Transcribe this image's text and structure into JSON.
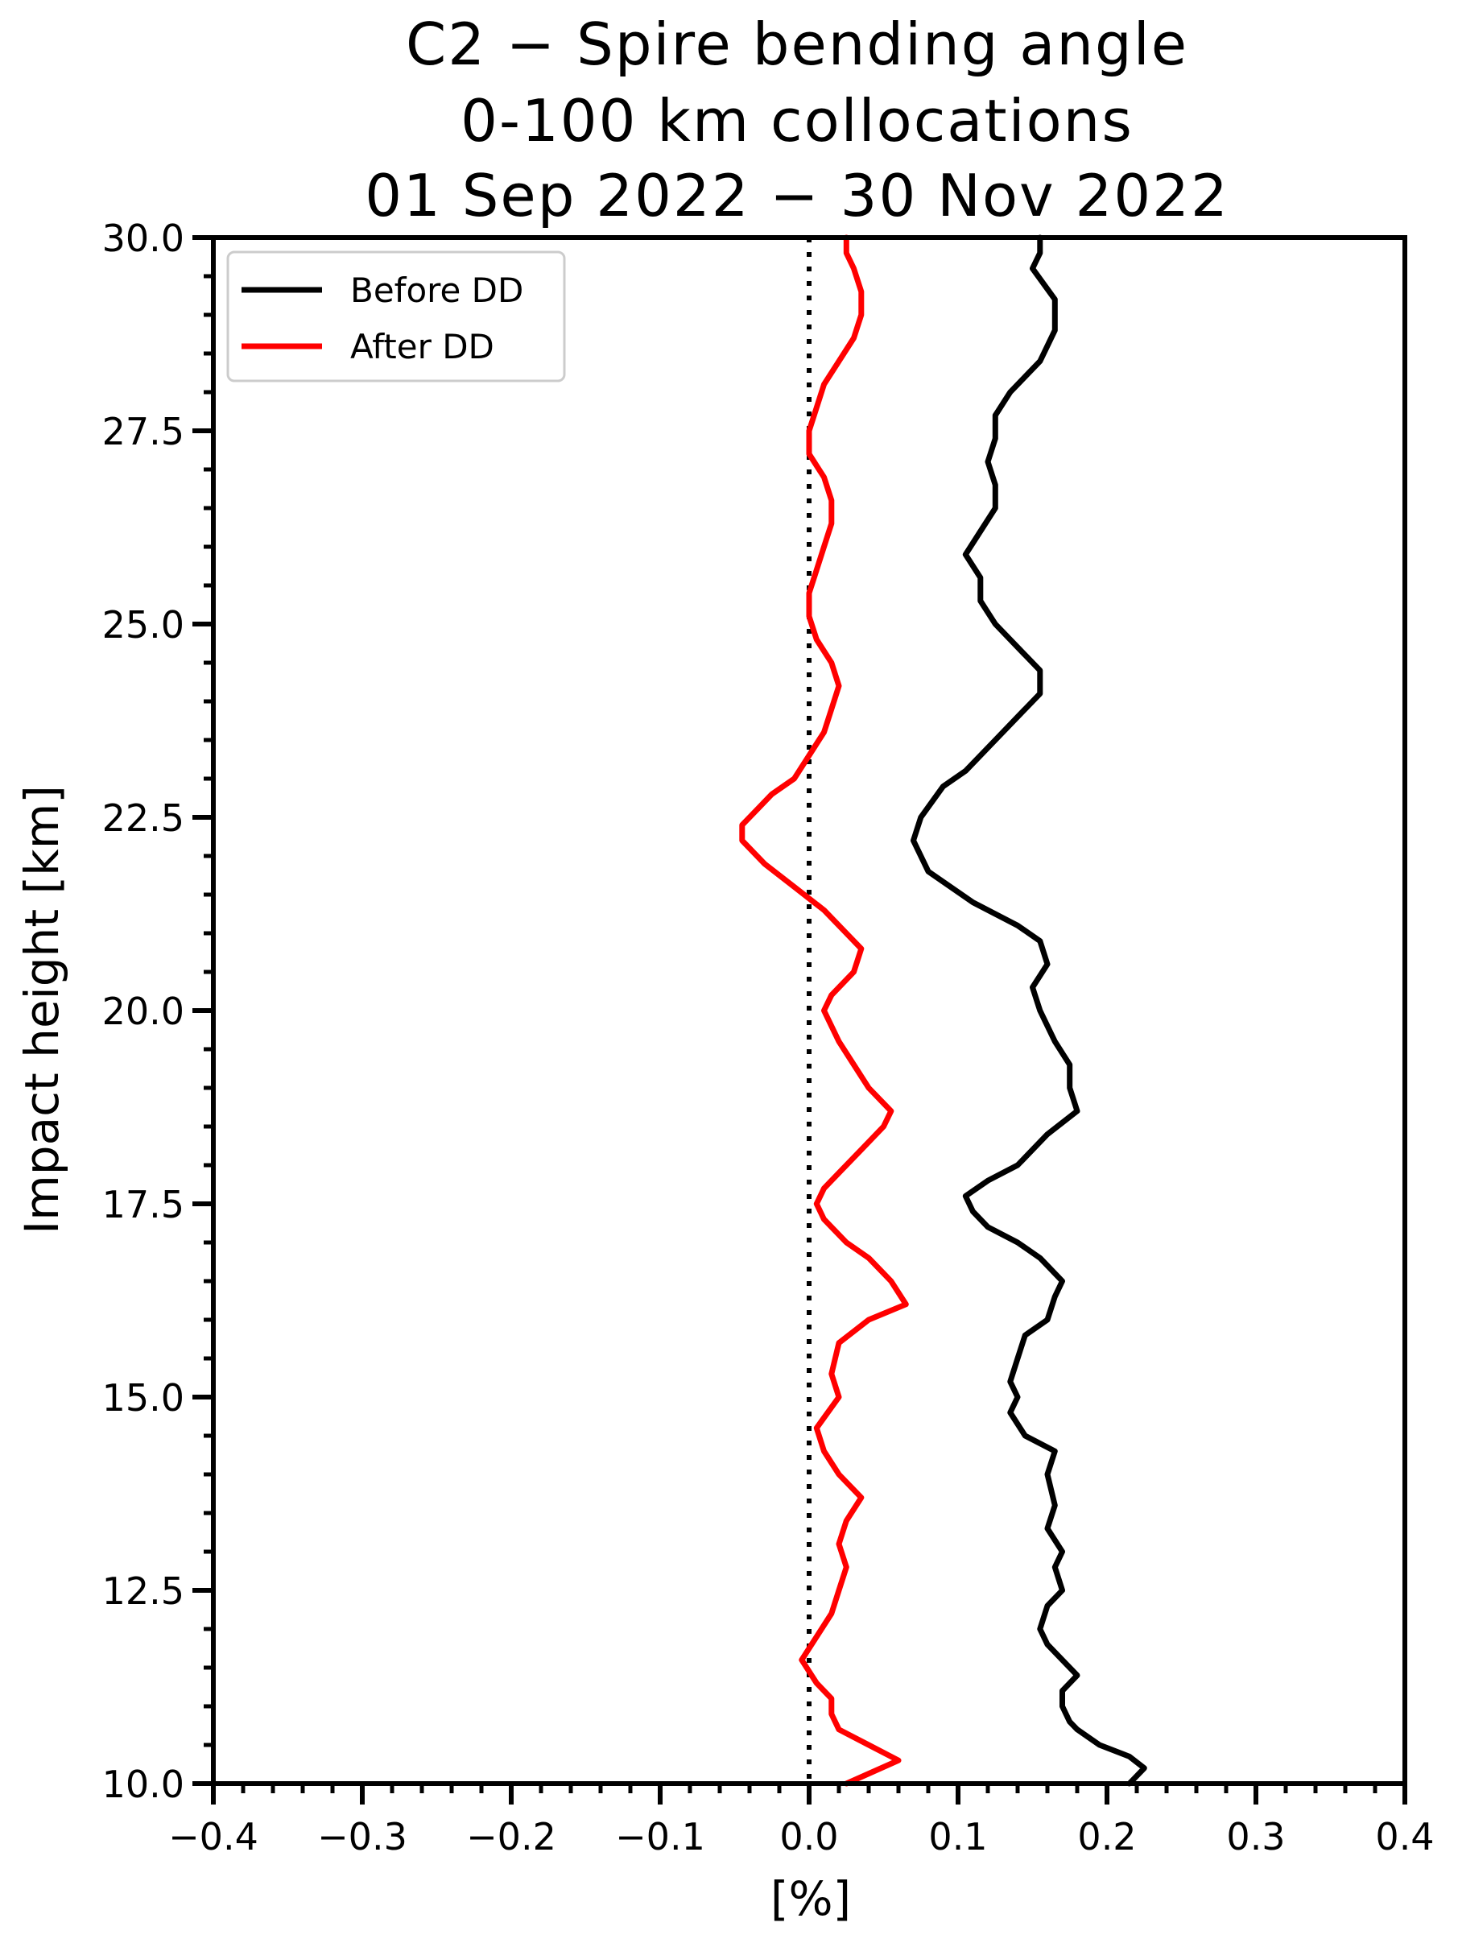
{
  "chart_data": {
    "type": "line",
    "title_lines": [
      "C2 − Spire bending angle",
      "0-100 km collocations",
      "01 Sep 2022 − 30 Nov 2022"
    ],
    "xlabel": "[%]",
    "ylabel": "Impact height [km]",
    "xlim": [
      -0.4,
      0.4
    ],
    "ylim": [
      10.0,
      30.0
    ],
    "xticks": [
      -0.4,
      -0.3,
      -0.2,
      -0.1,
      0.0,
      0.1,
      0.2,
      0.3,
      0.4
    ],
    "xtick_labels": [
      "−0.4",
      "−0.3",
      "−0.2",
      "−0.1",
      "0.0",
      "0.1",
      "0.2",
      "0.3",
      "0.4"
    ],
    "yticks": [
      10.0,
      12.5,
      15.0,
      17.5,
      20.0,
      22.5,
      25.0,
      27.5,
      30.0
    ],
    "ytick_labels": [
      "10.0",
      "12.5",
      "15.0",
      "17.5",
      "20.0",
      "22.5",
      "25.0",
      "27.5",
      "30.0"
    ],
    "grid": false,
    "legend_position": "top-left",
    "reference_line": {
      "x": 0.0,
      "style": "dotted",
      "color": "#000000"
    },
    "series": [
      {
        "name": "Before DD",
        "color": "#000000",
        "points": [
          [
            0.215,
            10.0
          ],
          [
            0.225,
            10.2
          ],
          [
            0.215,
            10.35
          ],
          [
            0.195,
            10.5
          ],
          [
            0.18,
            10.7
          ],
          [
            0.175,
            10.8
          ],
          [
            0.17,
            11.0
          ],
          [
            0.17,
            11.2
          ],
          [
            0.18,
            11.4
          ],
          [
            0.17,
            11.6
          ],
          [
            0.16,
            11.8
          ],
          [
            0.155,
            12.0
          ],
          [
            0.16,
            12.3
          ],
          [
            0.17,
            12.5
          ],
          [
            0.165,
            12.8
          ],
          [
            0.17,
            13.0
          ],
          [
            0.16,
            13.3
          ],
          [
            0.165,
            13.6
          ],
          [
            0.16,
            14.0
          ],
          [
            0.165,
            14.3
          ],
          [
            0.145,
            14.5
          ],
          [
            0.135,
            14.8
          ],
          [
            0.14,
            15.0
          ],
          [
            0.135,
            15.2
          ],
          [
            0.14,
            15.5
          ],
          [
            0.145,
            15.8
          ],
          [
            0.16,
            16.0
          ],
          [
            0.165,
            16.3
          ],
          [
            0.17,
            16.5
          ],
          [
            0.155,
            16.8
          ],
          [
            0.14,
            17.0
          ],
          [
            0.12,
            17.2
          ],
          [
            0.11,
            17.4
          ],
          [
            0.105,
            17.6
          ],
          [
            0.12,
            17.8
          ],
          [
            0.14,
            18.0
          ],
          [
            0.16,
            18.4
          ],
          [
            0.18,
            18.7
          ],
          [
            0.175,
            19.0
          ],
          [
            0.175,
            19.3
          ],
          [
            0.165,
            19.6
          ],
          [
            0.155,
            20.0
          ],
          [
            0.15,
            20.3
          ],
          [
            0.16,
            20.6
          ],
          [
            0.155,
            20.9
          ],
          [
            0.14,
            21.1
          ],
          [
            0.11,
            21.4
          ],
          [
            0.08,
            21.8
          ],
          [
            0.07,
            22.2
          ],
          [
            0.075,
            22.5
          ],
          [
            0.09,
            22.9
          ],
          [
            0.105,
            23.1
          ],
          [
            0.125,
            23.5
          ],
          [
            0.14,
            23.8
          ],
          [
            0.155,
            24.1
          ],
          [
            0.155,
            24.4
          ],
          [
            0.14,
            24.7
          ],
          [
            0.125,
            25.0
          ],
          [
            0.115,
            25.3
          ],
          [
            0.115,
            25.6
          ],
          [
            0.105,
            25.9
          ],
          [
            0.115,
            26.2
          ],
          [
            0.125,
            26.5
          ],
          [
            0.125,
            26.8
          ],
          [
            0.12,
            27.1
          ],
          [
            0.125,
            27.4
          ],
          [
            0.125,
            27.7
          ],
          [
            0.135,
            28.0
          ],
          [
            0.155,
            28.4
          ],
          [
            0.165,
            28.8
          ],
          [
            0.165,
            29.2
          ],
          [
            0.15,
            29.6
          ],
          [
            0.155,
            29.8
          ],
          [
            0.155,
            30.0
          ]
        ]
      },
      {
        "name": "After DD",
        "color": "#ff0000",
        "points": [
          [
            0.025,
            10.0
          ],
          [
            0.06,
            10.3
          ],
          [
            0.04,
            10.5
          ],
          [
            0.02,
            10.7
          ],
          [
            0.015,
            10.9
          ],
          [
            0.015,
            11.1
          ],
          [
            0.005,
            11.3
          ],
          [
            -0.005,
            11.6
          ],
          [
            0.005,
            11.9
          ],
          [
            0.015,
            12.2
          ],
          [
            0.02,
            12.5
          ],
          [
            0.025,
            12.8
          ],
          [
            0.02,
            13.1
          ],
          [
            0.025,
            13.4
          ],
          [
            0.035,
            13.7
          ],
          [
            0.02,
            14.0
          ],
          [
            0.01,
            14.3
          ],
          [
            0.005,
            14.6
          ],
          [
            0.02,
            15.0
          ],
          [
            0.015,
            15.3
          ],
          [
            0.02,
            15.7
          ],
          [
            0.04,
            16.0
          ],
          [
            0.065,
            16.2
          ],
          [
            0.055,
            16.5
          ],
          [
            0.04,
            16.8
          ],
          [
            0.025,
            17.0
          ],
          [
            0.01,
            17.3
          ],
          [
            0.005,
            17.5
          ],
          [
            0.01,
            17.7
          ],
          [
            0.02,
            17.9
          ],
          [
            0.035,
            18.2
          ],
          [
            0.05,
            18.5
          ],
          [
            0.055,
            18.7
          ],
          [
            0.04,
            19.0
          ],
          [
            0.03,
            19.3
          ],
          [
            0.02,
            19.6
          ],
          [
            0.01,
            20.0
          ],
          [
            0.015,
            20.2
          ],
          [
            0.03,
            20.5
          ],
          [
            0.035,
            20.8
          ],
          [
            0.025,
            21.0
          ],
          [
            0.01,
            21.3
          ],
          [
            -0.01,
            21.6
          ],
          [
            -0.03,
            21.9
          ],
          [
            -0.045,
            22.2
          ],
          [
            -0.045,
            22.4
          ],
          [
            -0.035,
            22.6
          ],
          [
            -0.025,
            22.8
          ],
          [
            -0.01,
            23.0
          ],
          [
            0.0,
            23.3
          ],
          [
            0.01,
            23.6
          ],
          [
            0.015,
            23.9
          ],
          [
            0.02,
            24.2
          ],
          [
            0.015,
            24.5
          ],
          [
            0.005,
            24.8
          ],
          [
            0.0,
            25.1
          ],
          [
            0.0,
            25.4
          ],
          [
            0.005,
            25.7
          ],
          [
            0.01,
            26.0
          ],
          [
            0.015,
            26.3
          ],
          [
            0.015,
            26.6
          ],
          [
            0.01,
            26.9
          ],
          [
            0.0,
            27.2
          ],
          [
            0.0,
            27.5
          ],
          [
            0.005,
            27.8
          ],
          [
            0.01,
            28.1
          ],
          [
            0.02,
            28.4
          ],
          [
            0.03,
            28.7
          ],
          [
            0.035,
            29.0
          ],
          [
            0.035,
            29.3
          ],
          [
            0.03,
            29.6
          ],
          [
            0.025,
            29.8
          ],
          [
            0.025,
            30.0
          ]
        ]
      }
    ]
  }
}
